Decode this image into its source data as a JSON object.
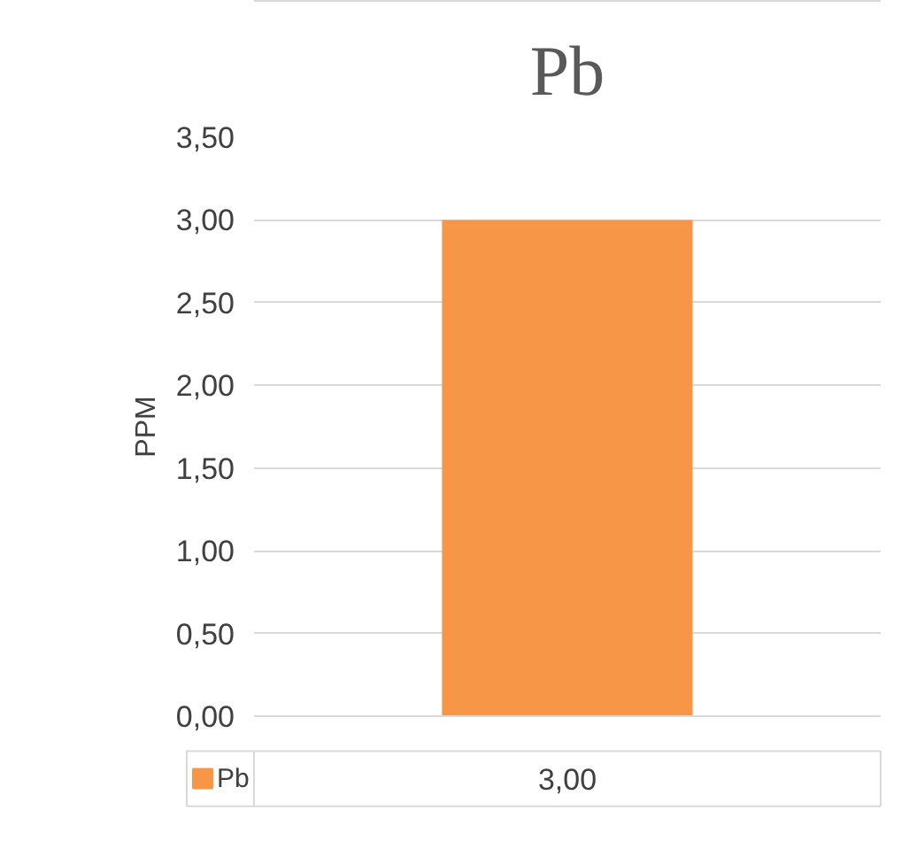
{
  "chart_data": {
    "type": "bar",
    "title": "Pb",
    "ylabel": "PPM",
    "categories": [
      null
    ],
    "series": [
      {
        "name": "Pb",
        "color": "#f79646",
        "values": [
          3.0
        ],
        "value_labels": [
          "3,00"
        ]
      }
    ],
    "ylim": [
      0,
      3.5
    ],
    "yticks": [
      {
        "value": 0,
        "label": "0,00"
      },
      {
        "value": 0.5,
        "label": "0,50"
      },
      {
        "value": 1,
        "label": "1,00"
      },
      {
        "value": 1.5,
        "label": "1,50"
      },
      {
        "value": 2,
        "label": "2,00"
      },
      {
        "value": 2.5,
        "label": "2,50"
      },
      {
        "value": 3,
        "label": "3,00"
      },
      {
        "value": 3.5,
        "label": "3,50"
      }
    ],
    "grid": "y",
    "legend": "bottom"
  }
}
